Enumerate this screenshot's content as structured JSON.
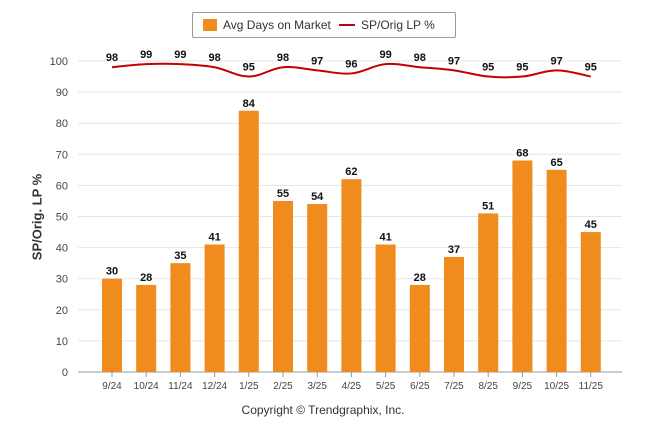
{
  "legend": {
    "bar_label": "Avg Days on Market",
    "line_label": "SP/Orig LP %"
  },
  "footer": {
    "copyright": "Copyright © Trendgraphix, Inc."
  },
  "colors": {
    "bar": "#ef8c1d",
    "line": "#c40000",
    "grid": "#e6e6e6",
    "text": "#333333"
  },
  "chart_data": {
    "type": "bar",
    "title": "",
    "xlabel": "",
    "ylabel": "SP/Orig. LP %",
    "ylim": [
      0,
      100
    ],
    "yticks": [
      0,
      10,
      20,
      30,
      40,
      50,
      60,
      70,
      80,
      90,
      100
    ],
    "categories": [
      "9/24",
      "10/24",
      "11/24",
      "12/24",
      "1/25",
      "2/25",
      "3/25",
      "4/25",
      "5/25",
      "6/25",
      "7/25",
      "8/25",
      "9/25",
      "10/25",
      "11/25"
    ],
    "series": [
      {
        "name": "Avg Days on Market",
        "type": "bar",
        "values": [
          30,
          28,
          35,
          41,
          84,
          55,
          54,
          62,
          41,
          28,
          37,
          51,
          68,
          65,
          45
        ]
      },
      {
        "name": "SP/Orig LP %",
        "type": "line",
        "values": [
          98,
          99,
          99,
          98,
          95,
          98,
          97,
          96,
          99,
          98,
          97,
          95,
          95,
          97,
          95
        ]
      }
    ],
    "legend_position": "top-center",
    "grid": true
  }
}
